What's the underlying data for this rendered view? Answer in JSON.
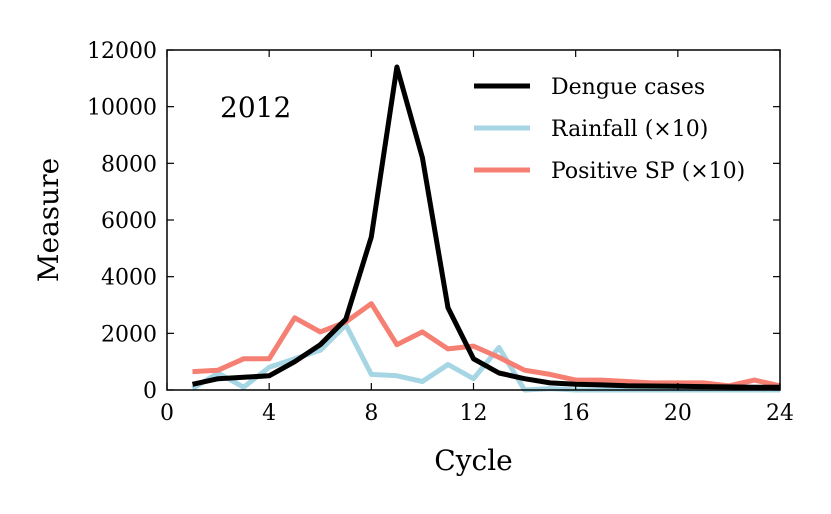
{
  "chart_data": {
    "type": "line",
    "title": "",
    "xlabel": "Cycle",
    "ylabel": "Measure",
    "xlim": [
      0,
      24
    ],
    "ylim": [
      0,
      12000
    ],
    "xticks": [
      0,
      4,
      8,
      12,
      16,
      20,
      24
    ],
    "yticks": [
      0,
      2000,
      4000,
      6000,
      8000,
      10000,
      12000
    ],
    "grid": false,
    "legend_position": "top-right",
    "annotation": "2012",
    "series": [
      {
        "name": "Dengue cases",
        "color": "#000000",
        "x": [
          1,
          2,
          3,
          4,
          5,
          6,
          7,
          8,
          9,
          10,
          11,
          12,
          13,
          14,
          15,
          16,
          17,
          18,
          19,
          20,
          21,
          22,
          23,
          24
        ],
        "y": [
          200,
          400,
          450,
          500,
          1000,
          1600,
          2500,
          5400,
          11400,
          8200,
          2900,
          1100,
          600,
          400,
          250,
          200,
          180,
          150,
          140,
          130,
          120,
          110,
          100,
          100
        ]
      },
      {
        "name": "Rainfall (×10)",
        "color": "#a6d6e4",
        "x": [
          1,
          2,
          3,
          4,
          5,
          6,
          7,
          8,
          9,
          10,
          11,
          12,
          13,
          14,
          15,
          16,
          17,
          18,
          19,
          20,
          21,
          22,
          23,
          24
        ],
        "y": [
          50,
          600,
          100,
          800,
          1100,
          1400,
          2300,
          550,
          500,
          300,
          900,
          400,
          1500,
          0,
          50,
          0,
          0,
          0,
          0,
          0,
          0,
          0,
          0,
          0
        ]
      },
      {
        "name": "Positive SP (×10)",
        "color": "#f47f72",
        "x": [
          1,
          2,
          3,
          4,
          5,
          6,
          7,
          8,
          9,
          10,
          11,
          12,
          13,
          14,
          15,
          16,
          17,
          18,
          19,
          20,
          21,
          22,
          23,
          24
        ],
        "y": [
          650,
          700,
          1100,
          1100,
          2550,
          2050,
          2400,
          3050,
          1600,
          2050,
          1450,
          1550,
          1150,
          700,
          550,
          350,
          350,
          300,
          250,
          250,
          250,
          150,
          350,
          150
        ]
      }
    ]
  }
}
